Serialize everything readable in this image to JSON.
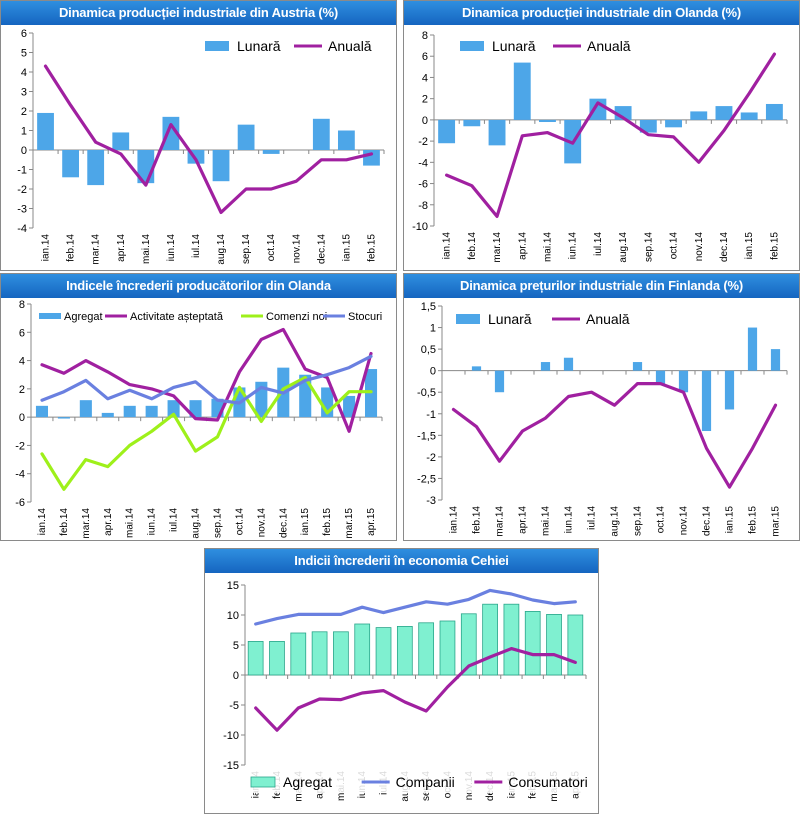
{
  "chart_data": [
    {
      "id": "austria",
      "type": "bar",
      "title": "Dinamica producției industriale din Austria (%)",
      "categories": [
        "ian.14",
        "feb.14",
        "mar.14",
        "apr.14",
        "mai.14",
        "iun.14",
        "iul.14",
        "aug.14",
        "sep.14",
        "oct.14",
        "nov.14",
        "dec.14",
        "ian.15",
        "feb.15"
      ],
      "ylim": [
        -4,
        6
      ],
      "yticks": [
        -4,
        -3,
        -2,
        -1,
        0,
        1,
        2,
        3,
        4,
        5,
        6
      ],
      "legend_position": "top-right",
      "series": [
        {
          "name": "Lunară",
          "kind": "bar",
          "color": "#4da6e8",
          "values": [
            1.9,
            -1.4,
            -1.8,
            0.9,
            -1.7,
            1.7,
            -0.7,
            -1.6,
            1.3,
            -0.2,
            0,
            1.6,
            1.0,
            -0.8
          ]
        },
        {
          "name": "Anuală",
          "kind": "line",
          "color": "#a020a0",
          "values": [
            4.3,
            2.3,
            0.4,
            -0.2,
            -1.8,
            1.3,
            -0.5,
            -3.2,
            -2.0,
            -2.0,
            -1.6,
            -0.5,
            -0.5,
            -0.2
          ]
        }
      ]
    },
    {
      "id": "olanda",
      "type": "bar",
      "title": "Dinamica producției industriale din Olanda (%)",
      "categories": [
        "ian.14",
        "feb.14",
        "mar.14",
        "apr.14",
        "mai.14",
        "iun.14",
        "iul.14",
        "aug.14",
        "sep.14",
        "oct.14",
        "nov.14",
        "dec.14",
        "ian.15",
        "feb.15"
      ],
      "ylim": [
        -10,
        8
      ],
      "yticks": [
        -10,
        -8,
        -6,
        -4,
        -2,
        0,
        2,
        4,
        6,
        8
      ],
      "legend_position": "top-right",
      "series": [
        {
          "name": "Lunară",
          "kind": "bar",
          "color": "#4da6e8",
          "values": [
            -2.2,
            -0.6,
            -2.4,
            5.4,
            -0.2,
            -4.1,
            2.0,
            1.3,
            -1.2,
            -0.7,
            0.8,
            1.3,
            0.7,
            1.5
          ]
        },
        {
          "name": "Anuală",
          "kind": "line",
          "color": "#a020a0",
          "values": [
            -5.2,
            -6.2,
            -9.1,
            -1.5,
            -1.2,
            -2.2,
            1.6,
            0.2,
            -1.4,
            -1.6,
            -4.0,
            -1.0,
            2.5,
            6.2
          ]
        }
      ]
    },
    {
      "id": "incredere-olanda",
      "type": "bar",
      "title": "Indicele încrederii producătorilor din Olanda",
      "categories": [
        "ian.14",
        "feb.14",
        "mar.14",
        "apr.14",
        "mai.14",
        "iun.14",
        "iul.14",
        "aug.14",
        "sep.14",
        "oct.14",
        "nov.14",
        "dec.14",
        "ian.15",
        "feb.15",
        "mar.15",
        "apr.15"
      ],
      "ylim": [
        -6,
        8
      ],
      "yticks": [
        -6,
        -4,
        -2,
        0,
        2,
        4,
        6,
        8
      ],
      "legend_position": "top",
      "series": [
        {
          "name": "Agregat",
          "kind": "bar",
          "color": "#4da6e8",
          "values": [
            0.8,
            -0.1,
            1.2,
            0.3,
            0.8,
            0.8,
            1.2,
            1.2,
            1.3,
            2.1,
            2.5,
            3.5,
            3.0,
            2.1,
            1.5,
            3.4
          ]
        },
        {
          "name": "Activitate așteptată",
          "kind": "line",
          "color": "#a020a0",
          "values": [
            3.7,
            3.1,
            4.0,
            3.2,
            2.3,
            2.0,
            1.5,
            -0.1,
            -0.2,
            3.2,
            5.5,
            6.2,
            3.4,
            2.8,
            -1.0,
            4.5
          ]
        },
        {
          "name": "Comenzi noi",
          "kind": "line",
          "color": "#9ef01a",
          "values": [
            -2.6,
            -5.1,
            -3.0,
            -3.5,
            -2.0,
            -1.0,
            0.2,
            -2.4,
            -1.4,
            2.1,
            -0.3,
            2.0,
            2.8,
            0.3,
            1.8,
            1.8
          ]
        },
        {
          "name": "Stocuri",
          "kind": "line",
          "color": "#6a80e0",
          "values": [
            1.2,
            1.8,
            2.6,
            1.3,
            1.9,
            1.3,
            2.1,
            2.5,
            1.2,
            1.0,
            2.1,
            1.7,
            2.6,
            3.0,
            3.5,
            4.3
          ]
        }
      ]
    },
    {
      "id": "preturi-finlanda",
      "type": "bar",
      "title": "Dinamica prețurilor industriale din Finlanda (%)",
      "categories": [
        "ian.14",
        "feb.14",
        "mar.14",
        "apr.14",
        "mai.14",
        "iun.14",
        "iul.14",
        "aug.14",
        "sep.14",
        "oct.14",
        "nov.14",
        "dec.14",
        "ian.15",
        "feb.15",
        "mar.15"
      ],
      "ylim": [
        -3,
        1.5
      ],
      "yticks": [
        -3,
        -2.5,
        -2,
        -1.5,
        -1,
        -0.5,
        0,
        0.5,
        1,
        1.5
      ],
      "legend_position": "top-left",
      "series": [
        {
          "name": "Lunară",
          "kind": "bar",
          "color": "#4da6e8",
          "values": [
            0,
            0.1,
            -0.5,
            0,
            0.2,
            0.3,
            0,
            0,
            0.2,
            -0.3,
            -0.5,
            -1.4,
            -0.9,
            1.0,
            0.5
          ]
        },
        {
          "name": "Anuală",
          "kind": "line",
          "color": "#a020a0",
          "values": [
            -0.9,
            -1.3,
            -2.1,
            -1.4,
            -1.1,
            -0.6,
            -0.5,
            -0.8,
            -0.3,
            -0.3,
            -0.5,
            -1.8,
            -2.7,
            -1.8,
            -0.8
          ]
        }
      ]
    },
    {
      "id": "cehia",
      "type": "bar",
      "title": "Indicii încrederii în economia Cehiei",
      "categories": [
        "ian.14",
        "feb.14",
        "mar.14",
        "apr.14",
        "mai.14",
        "iun.14",
        "iul.14",
        "aug.14",
        "sep.14",
        "oct.14",
        "nov.14",
        "dec.14",
        "ian.15",
        "feb.15",
        "mar.15",
        "apr.15"
      ],
      "ylim": [
        -15,
        15
      ],
      "yticks": [
        -15,
        -10,
        -5,
        0,
        5,
        10,
        15
      ],
      "legend_position": "bottom",
      "series": [
        {
          "name": "Agregat",
          "kind": "bar",
          "color": "#7ff0d0",
          "values": [
            5.6,
            5.6,
            7.0,
            7.2,
            7.2,
            8.5,
            7.9,
            8.1,
            8.7,
            9.0,
            10.2,
            11.8,
            11.8,
            10.6,
            10.1,
            10.0
          ]
        },
        {
          "name": "Companii",
          "kind": "line",
          "color": "#6a80e0",
          "values": [
            8.5,
            9.4,
            10.1,
            10.1,
            10.1,
            11.3,
            10.4,
            11.3,
            12.2,
            11.8,
            12.6,
            14.1,
            13.5,
            12.5,
            11.9,
            12.2
          ]
        },
        {
          "name": "Consumatori",
          "kind": "line",
          "color": "#a020a0",
          "values": [
            -5.5,
            -9.2,
            -5.5,
            -4.0,
            -4.1,
            -3.0,
            -2.6,
            -4.5,
            -6.0,
            -2.0,
            1.5,
            3.0,
            4.4,
            3.4,
            3.4,
            2.1
          ]
        }
      ]
    }
  ]
}
